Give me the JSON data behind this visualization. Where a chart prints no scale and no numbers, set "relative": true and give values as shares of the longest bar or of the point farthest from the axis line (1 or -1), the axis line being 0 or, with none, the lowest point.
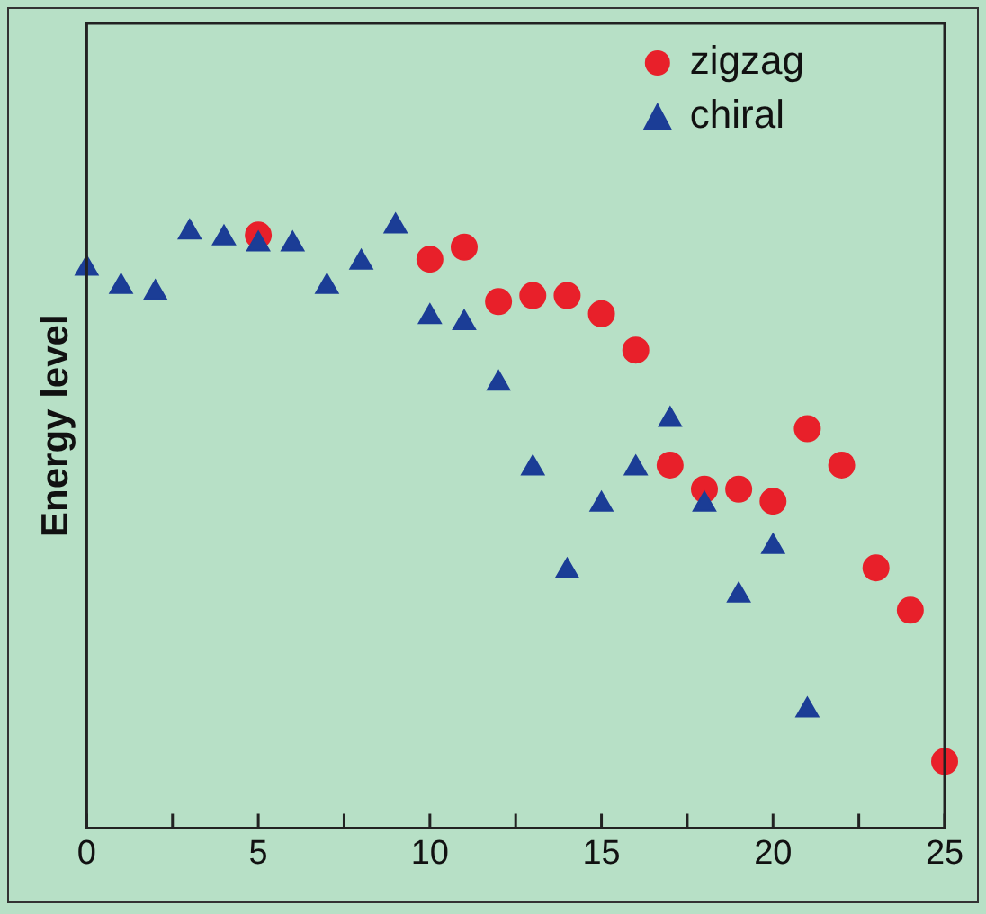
{
  "chart_data": {
    "type": "scatter",
    "ylabel": "Energy level",
    "relative": true,
    "xlim": [
      0,
      25
    ],
    "xticks": [
      0,
      {
        "value": 2.5,
        "label": null
      },
      5,
      {
        "value": 7.5,
        "label": null
      },
      10,
      {
        "value": 12.5,
        "label": null
      },
      15,
      {
        "value": 17.5,
        "label": null
      },
      20,
      {
        "value": 22.5,
        "label": null
      },
      25
    ],
    "grid": false,
    "legend": "top right",
    "series": [
      {
        "name": "zigzag",
        "color": "#e8202a",
        "marker": "circle",
        "x": [
          5,
          10,
          11,
          12,
          13,
          14,
          15,
          16,
          17,
          18,
          19,
          20,
          21,
          22,
          23,
          24,
          25
        ],
        "values": [
          0.98,
          0.94,
          0.96,
          0.87,
          0.88,
          0.88,
          0.85,
          0.79,
          0.6,
          0.56,
          0.56,
          0.54,
          0.66,
          0.6,
          0.43,
          0.36,
          0.11
        ]
      },
      {
        "name": "chiral",
        "color": "#1b3d96",
        "marker": "triangle",
        "x": [
          0,
          1,
          2,
          3,
          4,
          5,
          6,
          7,
          8,
          9,
          10,
          11,
          12,
          13,
          14,
          15,
          16,
          17,
          18,
          19,
          20,
          21
        ],
        "values": [
          0.93,
          0.9,
          0.89,
          0.99,
          0.98,
          0.97,
          0.97,
          0.9,
          0.94,
          1.0,
          0.85,
          0.84,
          0.74,
          0.6,
          0.43,
          0.54,
          0.6,
          0.68,
          0.54,
          0.39,
          0.47,
          0.2
        ]
      }
    ]
  }
}
